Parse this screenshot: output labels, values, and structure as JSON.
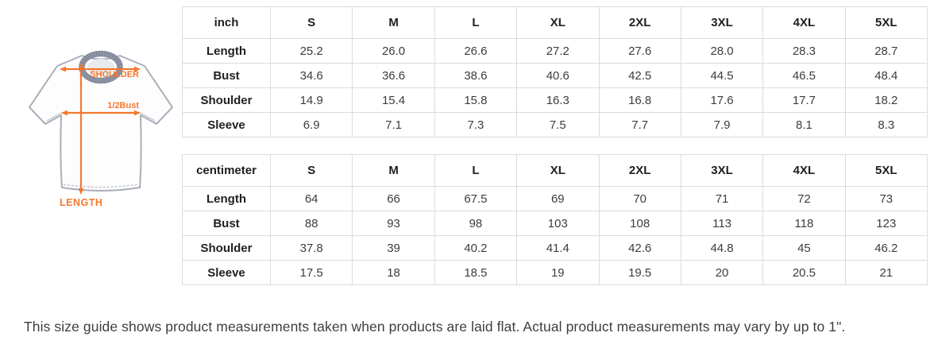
{
  "diagram": {
    "labels": {
      "shoulder": "SHOULDER",
      "half_bust": "1/2Bust",
      "length": "LENGTH"
    },
    "accent_color": "#f4772d",
    "collar_color": "#8e94a6",
    "outline_color": "#a9aeb9"
  },
  "tables": {
    "inch": {
      "unit": "inch",
      "sizes": [
        "S",
        "M",
        "L",
        "XL",
        "2XL",
        "3XL",
        "4XL",
        "5XL"
      ],
      "rows": [
        {
          "label": "Length",
          "values": [
            "25.2",
            "26.0",
            "26.6",
            "27.2",
            "27.6",
            "28.0",
            "28.3",
            "28.7"
          ]
        },
        {
          "label": "Bust",
          "values": [
            "34.6",
            "36.6",
            "38.6",
            "40.6",
            "42.5",
            "44.5",
            "46.5",
            "48.4"
          ]
        },
        {
          "label": "Shoulder",
          "values": [
            "14.9",
            "15.4",
            "15.8",
            "16.3",
            "16.8",
            "17.6",
            "17.7",
            "18.2"
          ]
        },
        {
          "label": "Sleeve",
          "values": [
            "6.9",
            "7.1",
            "7.3",
            "7.5",
            "7.7",
            "7.9",
            "8.1",
            "8.3"
          ]
        }
      ]
    },
    "centimeter": {
      "unit": "centimeter",
      "sizes": [
        "S",
        "M",
        "L",
        "XL",
        "2XL",
        "3XL",
        "4XL",
        "5XL"
      ],
      "rows": [
        {
          "label": "Length",
          "values": [
            "64",
            "66",
            "67.5",
            "69",
            "70",
            "71",
            "72",
            "73"
          ]
        },
        {
          "label": "Bust",
          "values": [
            "88",
            "93",
            "98",
            "103",
            "108",
            "113",
            "118",
            "123"
          ]
        },
        {
          "label": "Shoulder",
          "values": [
            "37.8",
            "39",
            "40.2",
            "41.4",
            "42.6",
            "44.8",
            "45",
            "46.2"
          ]
        },
        {
          "label": "Sleeve",
          "values": [
            "17.5",
            "18",
            "18.5",
            "19",
            "19.5",
            "20",
            "20.5",
            "21"
          ]
        }
      ]
    }
  },
  "footer": {
    "note": "This size guide shows product measurements taken when products are laid flat. Actual product measurements may vary by up to 1\"."
  }
}
